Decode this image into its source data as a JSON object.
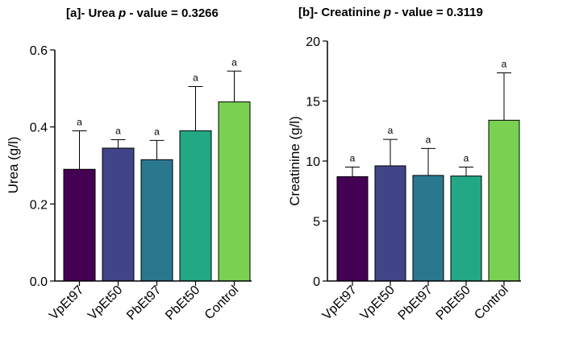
{
  "chart_data": [
    {
      "type": "bar",
      "panel": "[a]",
      "title_prefix": "[a]- Urea ",
      "title_p": "p",
      "title_suffix": " - value = 0.3266",
      "ylabel": "Urea (g/l)",
      "xlabel": "",
      "ylim": [
        0,
        0.6
      ],
      "yticks": [
        0.0,
        0.2,
        0.4,
        0.6
      ],
      "ytick_labels": [
        "0.0",
        "0.2",
        "0.4",
        "0.6"
      ],
      "categories": [
        "VpEt97",
        "VpEt50",
        "PbEt97",
        "PbEt50",
        "Control"
      ],
      "values": [
        0.29,
        0.345,
        0.315,
        0.39,
        0.465
      ],
      "error_upper": [
        0.39,
        0.367,
        0.365,
        0.505,
        0.545
      ],
      "significance": [
        "a",
        "a",
        "a",
        "a",
        "a"
      ],
      "colors": [
        "#440154",
        "#414487",
        "#2a788e",
        "#22a884",
        "#7ad151"
      ]
    },
    {
      "type": "bar",
      "panel": "[b]",
      "title_prefix": "[b]- Creatinine  ",
      "title_p": "p",
      "title_suffix": " - value = 0.3119",
      "ylabel": "Creatinine (g/l)",
      "xlabel": "",
      "ylim": [
        0,
        20
      ],
      "yticks": [
        0,
        5,
        10,
        15,
        20
      ],
      "ytick_labels": [
        "0",
        "5",
        "10",
        "15",
        "20"
      ],
      "categories": [
        "VpEt97",
        "VpEt50",
        "PbEt97",
        "PbEt50",
        "Control"
      ],
      "values": [
        8.7,
        9.6,
        8.8,
        8.75,
        13.4
      ],
      "error_upper": [
        9.5,
        11.8,
        11.05,
        9.5,
        17.35
      ],
      "significance": [
        "a",
        "a",
        "a",
        "a",
        "a"
      ],
      "colors": [
        "#440154",
        "#414487",
        "#2a788e",
        "#22a884",
        "#7ad151"
      ]
    }
  ]
}
